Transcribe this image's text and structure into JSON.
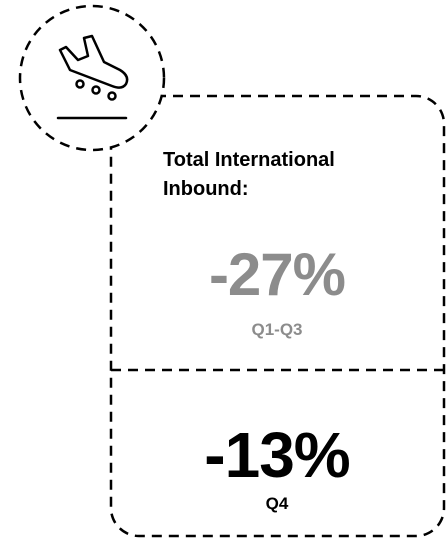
{
  "card": {
    "title": "Total International Inbound:",
    "stats": [
      {
        "value": "-27%",
        "period": "Q1-Q3"
      },
      {
        "value": "-13%",
        "period": "Q4"
      }
    ]
  }
}
